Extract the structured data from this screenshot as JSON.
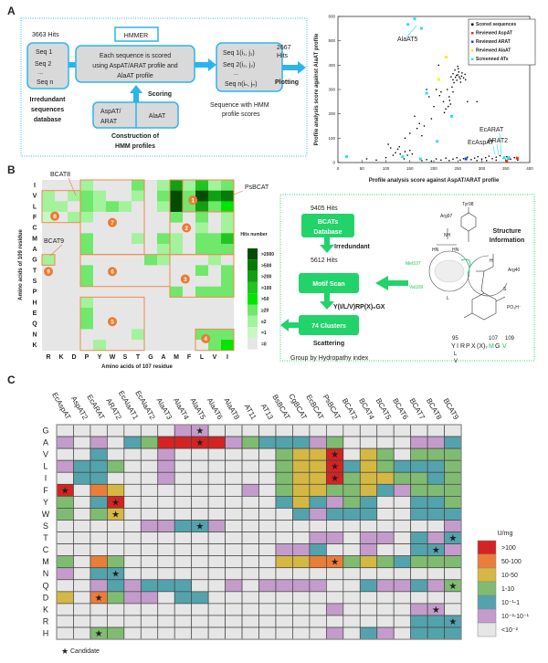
{
  "panel_labels": {
    "a": "A",
    "b": "B",
    "c": "C"
  },
  "panel_a": {
    "hits_in": "3663 Hits",
    "seq_items": [
      "Seq 1",
      "Seq 2",
      "...",
      "Seq n"
    ],
    "db_label": [
      "Irredundant",
      "sequences",
      "database"
    ],
    "hmmer": "HMMER",
    "scoring_box": [
      "Each sequence  is scored",
      "using AspAT/ARAT profile and",
      "AlaAT profile"
    ],
    "scoring": "Scoring",
    "profile_1": [
      "AspAT/",
      "ARAT"
    ],
    "profile_2": "AlaAT",
    "construction": [
      "Construction of",
      "HMM profiles"
    ],
    "scored_items": [
      "Seq 1(i₁, j₁)",
      "Seq 2(i₂, j₂)",
      "...",
      "Seq n(iₙ, jₙ)"
    ],
    "hits_out": [
      "2667",
      "Hits"
    ],
    "plotting": "Plotting",
    "scored_label": [
      "Sequence with HMM",
      "profile scores"
    ],
    "accent": "#2bb5ec"
  },
  "panel_b_flow": {
    "hits_1": "9405 Hits",
    "db_box": [
      "BCATs",
      "Database"
    ],
    "irredundant": "Irredundant",
    "hits_2": "5612 Hits",
    "motif_box": "Motif Scan",
    "motif": "Y(I/L/V)RP(X)₆GX",
    "clusters_box": "74 Clusters",
    "scattering": "Scattering",
    "group": "Group by Hydropathy index",
    "structure_title": [
      "Structure",
      "Information"
    ],
    "structure_labels": {
      "tyr": "Tyr98",
      "arg97": "Arg97",
      "nh": "NH",
      "hn1": "HN",
      "hn2": "HN",
      "arg40": "Arg40",
      "met": "Met107",
      "val": "Val109",
      "l": "L",
      "s": "S",
      "po3": "PO₃H⁻",
      "h": "H"
    },
    "motif_numbers": {
      "n95": "95",
      "n107": "107",
      "n109": "109"
    },
    "motif_seq": [
      "Y",
      "I",
      "R",
      "P",
      "X",
      "(X)₇",
      "M",
      "G",
      "V"
    ],
    "motif_alt": [
      "L",
      "V"
    ],
    "accent": "#22d36a"
  },
  "chart_data": [
    {
      "type": "scatter",
      "xlabel": "Profile analysis score against AspAT/ARAT profile",
      "ylabel": "Profile analysis score against AlaAT profile",
      "xlim": [
        0,
        400
      ],
      "ylim": [
        0,
        600
      ],
      "xticks": [
        "0",
        "50",
        "100",
        "150",
        "200",
        "250",
        "300",
        "350",
        "400"
      ],
      "yticks": [
        "0",
        "100",
        "200",
        "300",
        "400",
        "500",
        "600"
      ],
      "legend_position": "top-right",
      "series": [
        {
          "name": "Scored sequences",
          "color": "#000000",
          "points": [
            [
              245,
              350
            ],
            [
              250,
              360
            ],
            [
              255,
              345
            ],
            [
              240,
              365
            ],
            [
              252,
              372
            ],
            [
              258,
              355
            ],
            [
              248,
              338
            ],
            [
              262,
              348
            ],
            [
              244,
              380
            ],
            [
              236,
              352
            ],
            [
              256,
              330
            ],
            [
              250,
              395
            ],
            [
              265,
              362
            ],
            [
              240,
              340
            ],
            [
              253,
              352
            ],
            [
              247,
              358
            ],
            [
              259,
              368
            ],
            [
              242,
              328
            ],
            [
              266,
              340
            ],
            [
              251,
              385
            ],
            [
              228,
              300
            ],
            [
              232,
              270
            ],
            [
              220,
              250
            ],
            [
              235,
              240
            ],
            [
              225,
              220
            ],
            [
              215,
              290
            ],
            [
              238,
              310
            ],
            [
              230,
              230
            ],
            [
              222,
              205
            ],
            [
              212,
              275
            ],
            [
              240,
              290
            ],
            [
              233,
              255
            ],
            [
              160,
              190
            ],
            [
              170,
              160
            ],
            [
              180,
              150
            ],
            [
              150,
              120
            ],
            [
              190,
              270
            ],
            [
              200,
              230
            ],
            [
              185,
              300
            ],
            [
              175,
              110
            ],
            [
              205,
              300
            ],
            [
              140,
              100
            ],
            [
              165,
              140
            ],
            [
              195,
              180
            ],
            [
              210,
              400
            ],
            [
              270,
              250
            ],
            [
              290,
              250
            ],
            [
              120,
              40
            ],
            [
              130,
              35
            ],
            [
              140,
              45
            ],
            [
              110,
              60
            ],
            [
              125,
              55
            ],
            [
              135,
              25
            ],
            [
              145,
              30
            ],
            [
              150,
              50
            ],
            [
              115,
              30
            ],
            [
              105,
              75
            ],
            [
              128,
              65
            ],
            [
              138,
              15
            ],
            [
              155,
              35
            ],
            [
              100,
              20
            ],
            [
              80,
              10
            ],
            [
              60,
              15
            ],
            [
              175,
              8
            ],
            [
              185,
              12
            ],
            [
              195,
              6
            ],
            [
              205,
              15
            ],
            [
              215,
              10
            ],
            [
              225,
              18
            ],
            [
              232,
              8
            ],
            [
              240,
              14
            ],
            [
              248,
              20
            ],
            [
              255,
              10
            ],
            [
              262,
              16
            ],
            [
              270,
              22
            ],
            [
              278,
              12
            ],
            [
              285,
              18
            ],
            [
              292,
              24
            ],
            [
              300,
              14
            ],
            [
              308,
              20
            ],
            [
              315,
              26
            ],
            [
              322,
              16
            ],
            [
              330,
              22
            ],
            [
              338,
              28
            ],
            [
              345,
              18
            ],
            [
              352,
              24
            ],
            [
              360,
              14
            ],
            [
              368,
              20
            ],
            [
              375,
              10
            ],
            [
              290,
              8
            ],
            [
              310,
              8
            ],
            [
              330,
              10
            ],
            [
              350,
              10
            ]
          ]
        },
        {
          "name": "Reviewed AspAT",
          "color": "#ff2020",
          "points": [
            [
              374,
              18
            ],
            [
              352,
              5
            ]
          ]
        },
        {
          "name": "Reviewed ARAT",
          "color": "#1a3cff",
          "points": [
            [
              267,
              15
            ],
            [
              356,
              18
            ]
          ]
        },
        {
          "name": "Reviewed AlaAT",
          "color": "#ffee00",
          "points": [
            [
              226,
              433
            ],
            [
              210,
              341
            ]
          ]
        },
        {
          "name": "Screenned ATs",
          "color": "#22e5f0",
          "points": [
            [
              18,
              24
            ],
            [
              135,
              24
            ],
            [
              172,
              15
            ],
            [
              160,
              590
            ],
            [
              146,
              567
            ],
            [
              174,
              551
            ],
            [
              185,
              285
            ],
            [
              237,
              190
            ],
            [
              207,
              87
            ],
            [
              347,
              20
            ],
            [
              356,
              20
            ]
          ]
        }
      ],
      "annotations": [
        {
          "text": "AlaAT5",
          "x": 150,
          "y": 567
        },
        {
          "text": "EcARAT",
          "x": 347,
          "y": 20
        },
        {
          "text": "EcAspAT",
          "x": 347,
          "y": 20
        },
        {
          "text": "ARAT2",
          "x": 356,
          "y": 20
        }
      ]
    },
    {
      "type": "heatmap",
      "xlabel": "Amino acids of 107 residue",
      "ylabel": "Amino acids of 109 residue",
      "x_categories": [
        "R",
        "K",
        "D",
        "P",
        "Y",
        "W",
        "S",
        "T",
        "G",
        "A",
        "M",
        "F",
        "L",
        "V",
        "I"
      ],
      "y_categories": [
        "I",
        "V",
        "L",
        "F",
        "C",
        "M",
        "A",
        "G",
        "T",
        "S",
        "P",
        "H",
        "E",
        "Q",
        "N",
        "K"
      ],
      "legend_title": "Hits number",
      "levels": [
        "=0",
        "=1",
        "≥2",
        "≥20",
        ">50",
        ">100",
        ">200",
        ">500",
        ">2000"
      ],
      "level_colors": [
        "#e6e6e6",
        "#c9f7c3",
        "#a3f29c",
        "#6fe86b",
        "#00e600",
        "#22c422",
        "#11a011",
        "#067a06",
        "#034d03"
      ],
      "values": [
        "000200030262523",
        "202320020383867",
        "220323200283634",
        "102200000030302",
        "000000000000202",
        "000300020320335",
        "000300000220333",
        "200000003200020",
        "000300000000303",
        "000300000000003",
        "000000000030333",
        "000200000000000",
        "000300000000000",
        "000300000000000",
        "000000020000333",
        "000020000000034"
      ],
      "clusters": [
        "1",
        "2",
        "3",
        "4",
        "5",
        "6",
        "7",
        "8",
        "9"
      ],
      "annotations": [
        "BCAT8",
        "BCAT9",
        "PsBCAT"
      ],
      "box_color": "#f08a4b"
    },
    {
      "type": "heatmap",
      "x_categories": [
        "EcAspAT",
        "AspAT2",
        "EcARAT",
        "ARAT2",
        "EcAlaAT1",
        "EcAlaAT2",
        "AlaAT3",
        "AlaAT4",
        "AlaAT5",
        "AlaAT6",
        "AlaAT8",
        "AT11",
        "AT13",
        "BsBCAT",
        "CgBCAT",
        "EcBCAT",
        "PsBCAT",
        "BCAT2",
        "BCAT4",
        "BCAT5",
        "BCAT6",
        "BCAT7",
        "BCAT8",
        "BCAT9"
      ],
      "y_categories": [
        "G",
        "A",
        "V",
        "L",
        "I",
        "F",
        "Y",
        "W",
        "S",
        "T",
        "C",
        "M",
        "N",
        "Q",
        "D",
        "K",
        "R",
        "H"
      ],
      "legend_title": "U/mg",
      "levels": [
        ">100",
        "50-100",
        "10-50",
        "1-10",
        "10⁻¹-1",
        "10⁻²-10⁻¹",
        "<10⁻²"
      ],
      "level_colors": [
        "#d42323",
        "#ea7d37",
        "#d4b843",
        "#80bb72",
        "#53a3ad",
        "#c39ccb",
        "#e6e6e6"
      ],
      "values_note_scale": "0 = <10^-2 ... 6 = >100",
      "values": [
        "000000011000000000000000",
        "101023666613222130000112",
        "002000100000034460430333",
        "122300100000034462432223",
        "022000100000034463443323",
        "605400000001034433421333",
        "302600000000024213200223",
        "303400000000002122200222",
        "000001122100000000000001",
        "000000000000000110110212",
        "000000000000011200100221",
        "305300000000044553432333",
        "102200000000000000000000",
        "001212220010111100211213",
        "405311022000000000000000",
        "000000000000000010000110",
        "000000000000000000000222",
        "003300000000000010210222"
      ],
      "candidates": [
        [
          0,
          8
        ],
        [
          1,
          8
        ],
        [
          2,
          16
        ],
        [
          3,
          16
        ],
        [
          4,
          16
        ],
        [
          5,
          0
        ],
        [
          6,
          3
        ],
        [
          7,
          3
        ],
        [
          8,
          8
        ],
        [
          9,
          23
        ],
        [
          10,
          22
        ],
        [
          11,
          16
        ],
        [
          12,
          3
        ],
        [
          13,
          23
        ],
        [
          14,
          2
        ],
        [
          15,
          22
        ],
        [
          16,
          23
        ],
        [
          17,
          2
        ]
      ],
      "candidate_label": "Candidate"
    }
  ]
}
